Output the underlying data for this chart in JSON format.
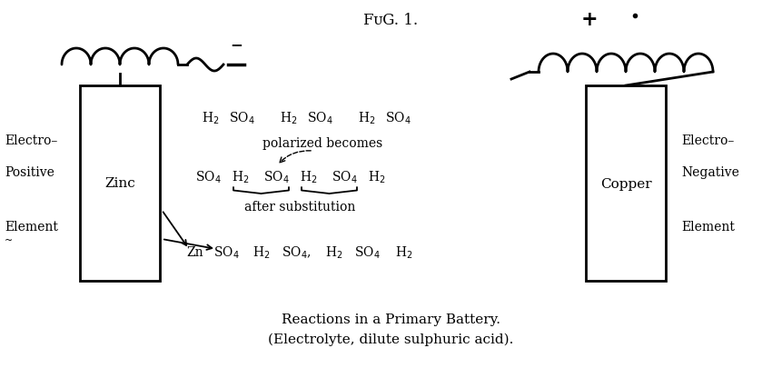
{
  "title": "FᴜG. 1.",
  "caption_line1": "Reactions in a Primary Battery.",
  "caption_line2": "(Electrolyte, dilute sulphuric acid).",
  "left_label_line1": "Electro–",
  "left_label_line2": "Positive",
  "left_label_line3": "Element",
  "right_label_line1": "Electro–",
  "right_label_line2": "Negative",
  "right_label_line3": "Element",
  "zinc_label": "Zinc",
  "copper_label": "Copper",
  "bg_color": "#ffffff",
  "fg_color": "#000000",
  "minus_sign": "−",
  "plus_sign": "+"
}
